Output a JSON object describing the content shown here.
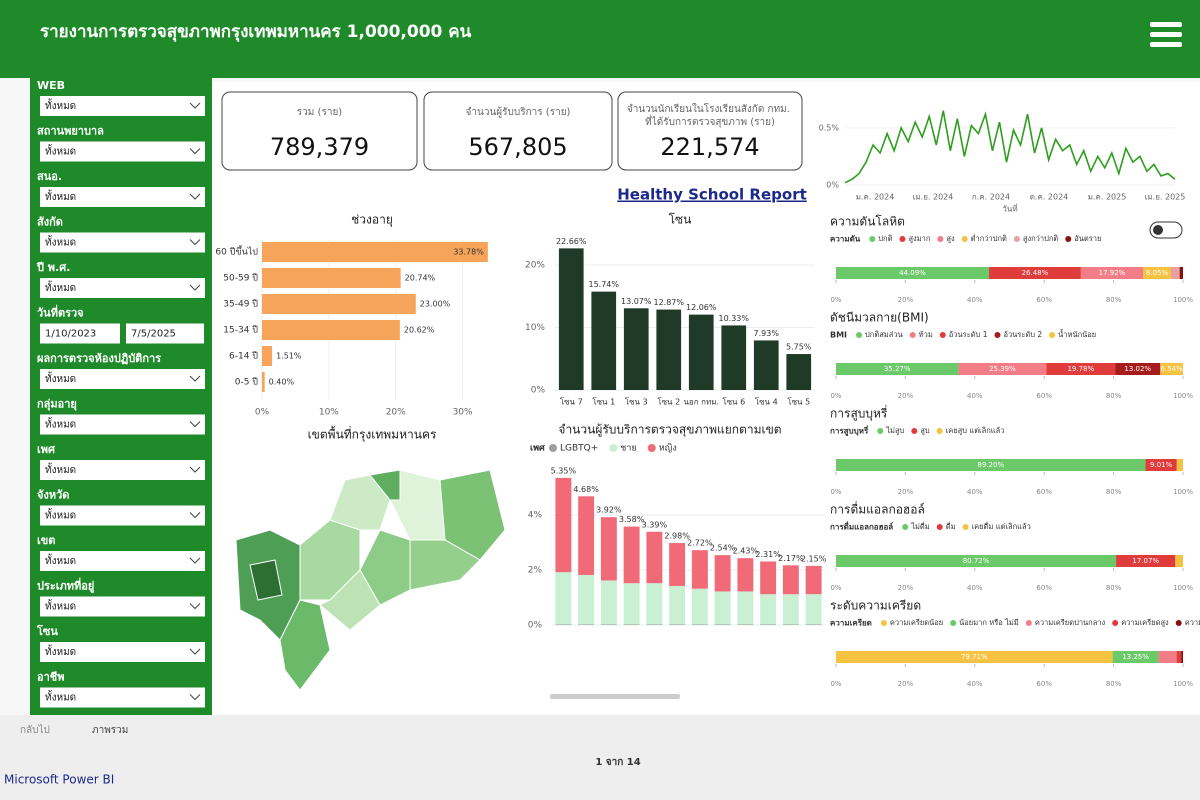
{
  "header": {
    "title": "รายงานการตรวจสุขภาพกรุงเทพมหานคร 1,000,000 คน"
  },
  "filters": [
    {
      "label": "WEB",
      "value": "ทั้งหมด"
    },
    {
      "label": "สถานพยาบาล",
      "value": "ทั้งหมด"
    },
    {
      "label": "สนอ.",
      "value": "ทั้งหมด"
    },
    {
      "label": "สังกัด",
      "value": "ทั้งหมด"
    },
    {
      "label": "ปี พ.ศ.",
      "value": "ทั้งหมด"
    },
    {
      "label": "วันที่ตรวจ",
      "from": "1/10/2023",
      "to": "7/5/2025"
    },
    {
      "label": "ผลการตรวจห้องปฏิบัติการ",
      "value": "ทั้งหมด"
    },
    {
      "label": "กลุ่มอายุ",
      "value": "ทั้งหมด"
    },
    {
      "label": "เพศ",
      "value": "ทั้งหมด"
    },
    {
      "label": "จังหวัด",
      "value": "ทั้งหมด"
    },
    {
      "label": "เขต",
      "value": "ทั้งหมด"
    },
    {
      "label": "ประเภทที่อยู่",
      "value": "ทั้งหมด"
    },
    {
      "label": "โซน",
      "value": "ทั้งหมด"
    },
    {
      "label": "อาชีพ",
      "value": "ทั้งหมด"
    }
  ],
  "kpis": [
    {
      "label": "รวม (ราย)",
      "value": "789,379"
    },
    {
      "label": "จำนวนผู้รับบริการ (ราย)",
      "value": "567,805"
    },
    {
      "label": "จำนวนนักเรียนในโรงเรียนสังกัด กทม. ที่ได้รับการตรวจสุขภาพ (ราย)",
      "value": "221,574"
    }
  ],
  "link": "Healthy School Report",
  "map_title": "เขตพื้นที่กรุงเทพมหานคร",
  "footer": {
    "back": "กลับไป",
    "tab": "ภาพรวม",
    "page": "1 จาก 14",
    "brand": "Microsoft Power BI"
  },
  "chart_data": [
    {
      "type": "hbar",
      "title": "ช่วงอายุ",
      "categories": [
        "60 ปีขึ้นไป",
        "50-59 ปี",
        "35-49 ปี",
        "15-34 ปี",
        "6-14 ปี",
        "0-5 ปี"
      ],
      "values": [
        33.78,
        20.74,
        23.0,
        20.62,
        1.51,
        0.4
      ],
      "value_labels": [
        "33.78%",
        "20.74%",
        "23.00%",
        "20.62%",
        "1.51%",
        "0.40%"
      ],
      "color": "#f5a45a",
      "xlim": [
        0,
        35
      ],
      "xticks": [
        {
          "value": 0,
          "label": "0%"
        },
        {
          "value": 10,
          "label": "10%"
        },
        {
          "value": 20,
          "label": "20%"
        },
        {
          "value": 30,
          "label": "30%"
        }
      ]
    },
    {
      "type": "bar",
      "title": "โซน",
      "categories": [
        "โซน 7",
        "โซน 1",
        "โซน 3",
        "โซน 2",
        "นอก กทม.",
        "โซน 6",
        "โซน 4",
        "โซน 5"
      ],
      "values": [
        22.66,
        15.74,
        13.07,
        12.87,
        12.06,
        10.33,
        7.93,
        5.75
      ],
      "value_labels": [
        "22.66%",
        "15.74%",
        "13.07%",
        "12.87%",
        "12.06%",
        "10.33%",
        "7.93%",
        "5.75%"
      ],
      "color": "#1f3a26",
      "ylim": [
        0,
        24
      ],
      "yticks": [
        {
          "value": 0,
          "label": "0%"
        },
        {
          "value": 10,
          "label": "10%"
        },
        {
          "value": 20,
          "label": "20%"
        }
      ]
    },
    {
      "type": "stacked",
      "title": "จำนวนผู้รับบริการตรวจสุขภาพแยกตามเขต",
      "legend_title": "เพศ",
      "categories": [
        null,
        null,
        null,
        null,
        null,
        null,
        null,
        null,
        null,
        null,
        null,
        null
      ],
      "series": [
        {
          "name": "LGBTQ+",
          "color": "#9e9e9e",
          "values": [
            0.02,
            0.02,
            0.02,
            0.02,
            0.02,
            0.02,
            0.02,
            0.02,
            0.02,
            0.02,
            0.02,
            0.02
          ]
        },
        {
          "name": "ชาย",
          "color": "#c9f0d3",
          "values": [
            1.9,
            1.8,
            1.6,
            1.5,
            1.5,
            1.4,
            1.3,
            1.2,
            1.2,
            1.1,
            1.1,
            1.1
          ]
        },
        {
          "name": "หญิง",
          "color": "#f06a78",
          "values": [
            3.43,
            2.86,
            2.3,
            2.06,
            1.87,
            1.56,
            1.4,
            1.32,
            1.21,
            1.19,
            1.05,
            1.03
          ]
        }
      ],
      "totals": [
        5.35,
        4.68,
        3.92,
        3.58,
        3.39,
        2.98,
        2.72,
        2.54,
        2.43,
        2.31,
        2.17,
        2.15
      ],
      "total_labels": [
        "5.35%",
        "4.68%",
        "3.92%",
        "3.58%",
        "3.39%",
        "2.98%",
        "2.72%",
        "2.54%",
        "2.43%",
        "2.31%",
        "2.17%",
        "2.15%"
      ],
      "ylim": [
        0,
        6
      ],
      "yticks": [
        {
          "value": 0,
          "label": "0%"
        },
        {
          "value": 2,
          "label": "2%"
        },
        {
          "value": 4,
          "label": "4%"
        }
      ]
    },
    {
      "type": "line",
      "xlabel": "วันที่",
      "color": "#2e9e1e",
      "values": [
        0.02,
        0.05,
        0.1,
        0.2,
        0.35,
        0.28,
        0.45,
        0.3,
        0.5,
        0.38,
        0.55,
        0.42,
        0.6,
        0.35,
        0.65,
        0.3,
        0.58,
        0.25,
        0.52,
        0.45,
        0.62,
        0.3,
        0.55,
        0.2,
        0.48,
        0.35,
        0.62,
        0.28,
        0.5,
        0.22,
        0.4,
        0.3,
        0.35,
        0.18,
        0.3,
        0.12,
        0.25,
        0.15,
        0.28,
        0.1,
        0.32,
        0.2,
        0.25,
        0.12,
        0.18,
        0.08,
        0.1,
        0.05
      ],
      "x_labels": [
        "ม.ค. 2024",
        "เม.ย. 2024",
        "ก.ค. 2024",
        "ต.ค. 2024",
        "ม.ค. 2025",
        "เม.ย. 2025"
      ],
      "ylim": [
        0,
        0.7
      ],
      "yticks": [
        {
          "value": 0,
          "label": "0%"
        },
        {
          "value": 0.5,
          "label": "0.5%"
        }
      ]
    },
    {
      "type": "stack100",
      "title": "ความดันโลหิต",
      "legend_title": "ความดัน",
      "series": [
        {
          "name": "ปกติ",
          "color": "#6cc96a",
          "values": [
            44.09
          ],
          "value_labels": [
            "44.09%"
          ]
        },
        {
          "name": "สูงมาก",
          "color": "#e03c3c",
          "values": [
            26.48
          ],
          "value_labels": [
            "26.48%"
          ]
        },
        {
          "name": "สูง",
          "color": "#f27d86",
          "values": [
            17.92
          ],
          "value_labels": [
            "17.92%"
          ]
        },
        {
          "name": "ต่ำกว่าปกติ",
          "color": "#f5c242",
          "values": [
            8.05
          ],
          "value_labels": [
            "8.05%"
          ]
        },
        {
          "name": "สูงกว่าปกติ",
          "color": "#e8a0a0",
          "values": [
            2.5
          ]
        },
        {
          "name": "อันตราย",
          "color": "#8b1010",
          "values": [
            0.96
          ]
        }
      ]
    },
    {
      "type": "stack100",
      "title": "ดัชนีมวลกาย(BMI)",
      "legend_title": "BMI",
      "series": [
        {
          "name": "ปกติสมส่วน",
          "color": "#6cc96a",
          "values": [
            35.27
          ],
          "value_labels": [
            "35.27%"
          ]
        },
        {
          "name": "ท้วม",
          "color": "#f27d86",
          "values": [
            25.39
          ],
          "value_labels": [
            "25.39%"
          ]
        },
        {
          "name": "อ้วนระดับ 1",
          "color": "#e03c3c",
          "values": [
            19.78
          ],
          "value_labels": [
            "19.78%"
          ]
        },
        {
          "name": "อ้วนระดับ 2",
          "color": "#a61b1b",
          "values": [
            13.02
          ],
          "value_labels": [
            "13.02%"
          ]
        },
        {
          "name": "น้ำหนักน้อย",
          "color": "#f5c242",
          "values": [
            6.54
          ],
          "value_labels": [
            "6.54%"
          ]
        }
      ]
    },
    {
      "type": "stack100",
      "title": "การสูบบุหรี่",
      "legend_title": "การสูบบุหรี่",
      "series": [
        {
          "name": "ไม่สูบ",
          "color": "#6cc96a",
          "values": [
            89.2
          ],
          "value_labels": [
            "89.20%"
          ]
        },
        {
          "name": "สูบ",
          "color": "#e03c3c",
          "values": [
            9.01
          ],
          "value_labels": [
            "9.01%"
          ]
        },
        {
          "name": "เคยสูบ แต่เลิกแล้ว",
          "color": "#f5c242",
          "values": [
            1.79
          ]
        }
      ]
    },
    {
      "type": "stack100",
      "title": "การดื่มแอลกอฮอล์",
      "legend_title": "การดื่มแอลกอฮอล์",
      "series": [
        {
          "name": "ไม่ดื่ม",
          "color": "#6cc96a",
          "values": [
            80.72
          ],
          "value_labels": [
            "80.72%"
          ]
        },
        {
          "name": "ดื่ม",
          "color": "#e03c3c",
          "values": [
            17.07
          ],
          "value_labels": [
            "17.07%"
          ]
        },
        {
          "name": "เคยดื่ม แต่เลิกแล้ว",
          "color": "#f5c242",
          "values": [
            2.21
          ]
        }
      ]
    },
    {
      "type": "stack100",
      "title": "ระดับความเครียด",
      "legend_title": "ความเครียด",
      "series": [
        {
          "name": "ความเครียดน้อย",
          "color": "#f5c242",
          "values": [
            79.71
          ],
          "value_labels": [
            "79.71%"
          ]
        },
        {
          "name": "น้อยมาก หรือ ไม่มี",
          "color": "#6cc96a",
          "values": [
            13.25
          ],
          "value_labels": [
            "13.25%"
          ]
        },
        {
          "name": "ความเครียดปานกลาง",
          "color": "#f27d86",
          "values": [
            5.2
          ]
        },
        {
          "name": "ความเครียดสูง",
          "color": "#e03c3c",
          "values": [
            1.3
          ]
        },
        {
          "name": "ความเครียดมากที่สุด",
          "color": "#8b1010",
          "values": [
            0.54
          ]
        }
      ]
    }
  ],
  "stack_axis": {
    "xlim": [
      0,
      100
    ],
    "xticks": [
      {
        "value": 0,
        "label": "0%"
      },
      {
        "value": 20,
        "label": "20%"
      },
      {
        "value": 40,
        "label": "40%"
      },
      {
        "value": 60,
        "label": "60%"
      },
      {
        "value": 80,
        "label": "80%"
      },
      {
        "value": 100,
        "label": "100%"
      }
    ]
  }
}
